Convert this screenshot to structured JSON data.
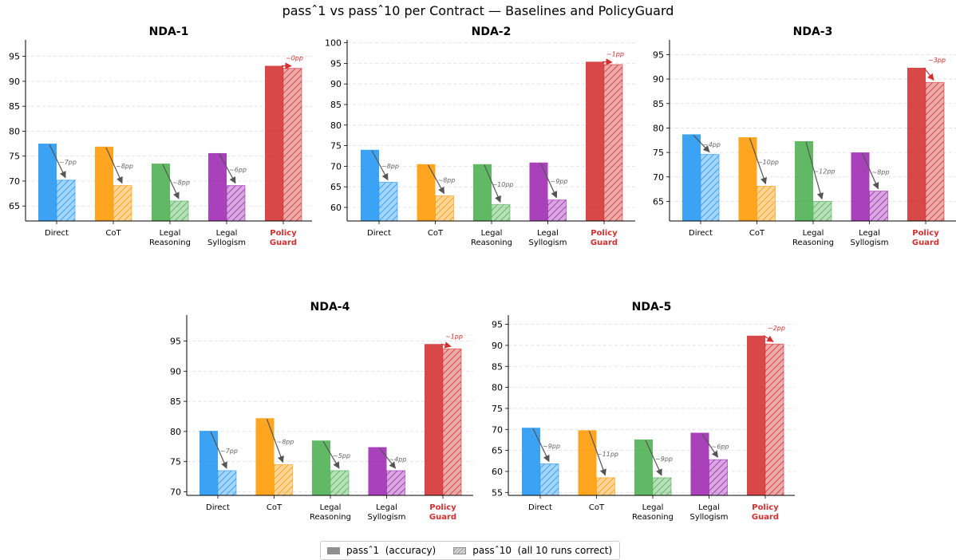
{
  "figure_title": "passˆ1 vs passˆ10 per Contract — Baselines and PolicyGuard",
  "legend": {
    "pass1": "passˆ1  (accuracy)",
    "pass10": "passˆ10  (all 10 runs correct)"
  },
  "colors": {
    "Direct": "#2196f3",
    "CoT": "#ff9800",
    "Legal Reasoning": "#4caf50",
    "Legal Syllogism": "#9c27b0",
    "PolicyGuard": "#d32f2f",
    "arrow": "#555555",
    "grid": "#dddddd"
  },
  "chart_data": [
    {
      "type": "bar",
      "title": "NDA-1",
      "categories": [
        "Direct",
        "CoT",
        "Legal Reasoning",
        "Legal Syllogism",
        "PolicyGuard"
      ],
      "category_labels": [
        [
          "Direct"
        ],
        [
          "CoT"
        ],
        [
          "Legal",
          "Reasoning"
        ],
        [
          "Legal",
          "Syllogism"
        ],
        [
          "Policy",
          "Guard"
        ]
      ],
      "series": [
        {
          "name": "passˆ1  (accuracy)",
          "values": [
            77.5,
            76.9,
            73.5,
            75.6,
            93.1
          ]
        },
        {
          "name": "passˆ10  (all 10 runs correct)",
          "values": [
            70.2,
            69.1,
            66.0,
            69.1,
            92.6
          ]
        }
      ],
      "annotations": [
        "~7pp",
        "~8pp",
        "~8pp",
        "~6pp",
        "~0pp"
      ],
      "ylim": [
        62,
        98.3
      ],
      "yticks": [
        65,
        70,
        75,
        80,
        85,
        90,
        95
      ],
      "grid": true
    },
    {
      "type": "bar",
      "title": "NDA-2",
      "categories": [
        "Direct",
        "CoT",
        "Legal Reasoning",
        "Legal Syllogism",
        "PolicyGuard"
      ],
      "category_labels": [
        [
          "Direct"
        ],
        [
          "CoT"
        ],
        [
          "Legal",
          "Reasoning"
        ],
        [
          "Legal",
          "Syllogism"
        ],
        [
          "Policy",
          "Guard"
        ]
      ],
      "series": [
        {
          "name": "passˆ1  (accuracy)",
          "values": [
            74.0,
            70.5,
            70.5,
            70.9,
            95.4
          ]
        },
        {
          "name": "passˆ10  (all 10 runs correct)",
          "values": [
            66.1,
            62.8,
            60.7,
            61.8,
            94.7
          ]
        }
      ],
      "annotations": [
        "~8pp",
        "~8pp",
        "~10pp",
        "~9pp",
        "~1pp"
      ],
      "ylim": [
        56.7,
        100.7
      ],
      "yticks": [
        60,
        65,
        70,
        75,
        80,
        85,
        90,
        95,
        100
      ],
      "grid": true
    },
    {
      "type": "bar",
      "title": "NDA-3",
      "categories": [
        "Direct",
        "CoT",
        "Legal Reasoning",
        "Legal Syllogism",
        "PolicyGuard"
      ],
      "category_labels": [
        [
          "Direct"
        ],
        [
          "CoT"
        ],
        [
          "Legal",
          "Reasoning"
        ],
        [
          "Legal",
          "Syllogism"
        ],
        [
          "Policy",
          "Guard"
        ]
      ],
      "series": [
        {
          "name": "passˆ1  (accuracy)",
          "values": [
            78.7,
            78.1,
            77.3,
            75.0,
            92.3
          ]
        },
        {
          "name": "passˆ10  (all 10 runs correct)",
          "values": [
            74.6,
            68.1,
            65.0,
            67.1,
            89.3
          ]
        }
      ],
      "annotations": [
        "~4pp",
        "~10pp",
        "~12pp",
        "~8pp",
        "~3pp"
      ],
      "ylim": [
        61.0,
        98.0
      ],
      "yticks": [
        65,
        70,
        75,
        80,
        85,
        90,
        95
      ],
      "grid": true
    },
    {
      "type": "bar",
      "title": "NDA-4",
      "categories": [
        "Direct",
        "CoT",
        "Legal Reasoning",
        "Legal Syllogism",
        "PolicyGuard"
      ],
      "category_labels": [
        [
          "Direct"
        ],
        [
          "CoT"
        ],
        [
          "Legal",
          "Reasoning"
        ],
        [
          "Legal",
          "Syllogism"
        ],
        [
          "Policy",
          "Guard"
        ]
      ],
      "series": [
        {
          "name": "passˆ1  (accuracy)",
          "values": [
            80.1,
            82.2,
            78.5,
            77.4,
            94.5
          ]
        },
        {
          "name": "passˆ10  (all 10 runs correct)",
          "values": [
            73.5,
            74.5,
            73.5,
            73.5,
            93.7
          ]
        }
      ],
      "annotations": [
        "~7pp",
        "~8pp",
        "~5pp",
        "~4pp",
        "~1pp"
      ],
      "ylim": [
        69.4,
        99.3
      ],
      "yticks": [
        70,
        75,
        80,
        85,
        90,
        95
      ],
      "grid": true
    },
    {
      "type": "bar",
      "title": "NDA-5",
      "categories": [
        "Direct",
        "CoT",
        "Legal Reasoning",
        "Legal Syllogism",
        "PolicyGuard"
      ],
      "category_labels": [
        [
          "Direct"
        ],
        [
          "CoT"
        ],
        [
          "Legal",
          "Reasoning"
        ],
        [
          "Legal",
          "Syllogism"
        ],
        [
          "Policy",
          "Guard"
        ]
      ],
      "series": [
        {
          "name": "passˆ1  (accuracy)",
          "values": [
            70.4,
            69.8,
            67.6,
            69.2,
            92.3
          ]
        },
        {
          "name": "passˆ10  (all 10 runs correct)",
          "values": [
            61.8,
            58.5,
            58.5,
            62.8,
            90.3
          ]
        }
      ],
      "annotations": [
        "~9pp",
        "~11pp",
        "~9pp",
        "~6pp",
        "~2pp"
      ],
      "ylim": [
        54.3,
        97.2
      ],
      "yticks": [
        55,
        60,
        65,
        70,
        75,
        80,
        85,
        90,
        95
      ],
      "grid": true
    }
  ]
}
